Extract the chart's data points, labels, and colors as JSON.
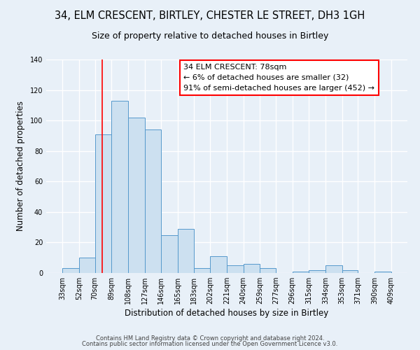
{
  "title": "34, ELM CRESCENT, BIRTLEY, CHESTER LE STREET, DH3 1GH",
  "subtitle": "Size of property relative to detached houses in Birtley",
  "xlabel": "Distribution of detached houses by size in Birtley",
  "ylabel": "Number of detached properties",
  "bin_edges": [
    33,
    52,
    70,
    89,
    108,
    127,
    146,
    165,
    183,
    202,
    221,
    240,
    259,
    277,
    296,
    315,
    334,
    353,
    371,
    390,
    409
  ],
  "bin_labels": [
    "33sqm",
    "52sqm",
    "70sqm",
    "89sqm",
    "108sqm",
    "127sqm",
    "146sqm",
    "165sqm",
    "183sqm",
    "202sqm",
    "221sqm",
    "240sqm",
    "259sqm",
    "277sqm",
    "296sqm",
    "315sqm",
    "334sqm",
    "353sqm",
    "371sqm",
    "390sqm",
    "409sqm"
  ],
  "counts": [
    3,
    10,
    91,
    113,
    102,
    94,
    25,
    29,
    3,
    11,
    5,
    6,
    3,
    0,
    1,
    2,
    5,
    2,
    0,
    1
  ],
  "bar_color": "#cce0f0",
  "bar_edge_color": "#5599cc",
  "vline_x": 78,
  "vline_color": "red",
  "annotation_text": "34 ELM CRESCENT: 78sqm\n← 6% of detached houses are smaller (32)\n91% of semi-detached houses are larger (452) →",
  "annotation_box_color": "white",
  "annotation_box_edge_color": "red",
  "ylim": [
    0,
    140
  ],
  "yticks": [
    0,
    20,
    40,
    60,
    80,
    100,
    120,
    140
  ],
  "footer1": "Contains HM Land Registry data © Crown copyright and database right 2024.",
  "footer2": "Contains public sector information licensed under the Open Government Licence v3.0.",
  "background_color": "#e8f0f8",
  "grid_color": "white",
  "title_fontsize": 10.5,
  "subtitle_fontsize": 9,
  "axis_label_fontsize": 8.5,
  "tick_fontsize": 7,
  "annotation_fontsize": 8,
  "footer_fontsize": 6
}
